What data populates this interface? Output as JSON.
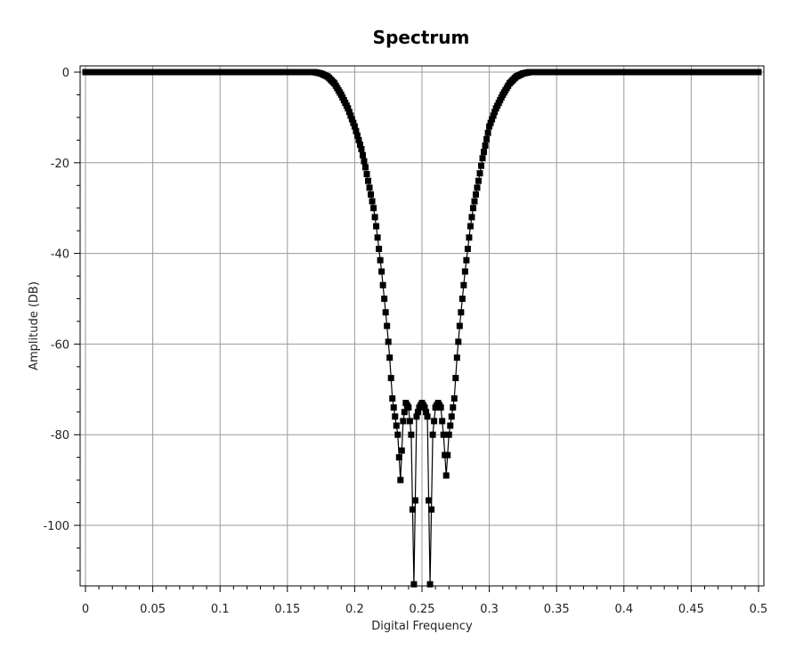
{
  "chart_data": {
    "type": "line",
    "title": "Spectrum",
    "xlabel": "Digital Frequency",
    "ylabel": "Amplitude (DB)",
    "xlim": [
      0,
      0.5
    ],
    "ylim": [
      -113,
      1
    ],
    "grid": true,
    "x_ticks": [
      "0",
      "0.05",
      "0.1",
      "0.15",
      "0.2",
      "0.25",
      "0.3",
      "0.35",
      "0.4",
      "0.45",
      "0.5"
    ],
    "y_ticks": [
      "0",
      "-20",
      "-40",
      "-60",
      "-80",
      "-100"
    ],
    "series": [
      {
        "marker": "square",
        "color": "#000000",
        "x": [
          0.0,
          0.05,
          0.1,
          0.15,
          0.17,
          0.175,
          0.18,
          0.185,
          0.19,
          0.195,
          0.2,
          0.205,
          0.208,
          0.21,
          0.212,
          0.214,
          0.216,
          0.218,
          0.22,
          0.222,
          0.224,
          0.226,
          0.228,
          0.23,
          0.232,
          0.234,
          0.236,
          0.238,
          0.24,
          0.242,
          0.244,
          0.246,
          0.248,
          0.25,
          0.252,
          0.254,
          0.256,
          0.258,
          0.26,
          0.262,
          0.264,
          0.266,
          0.268,
          0.27,
          0.272,
          0.274,
          0.276,
          0.278,
          0.28,
          0.282,
          0.284,
          0.286,
          0.288,
          0.29,
          0.292,
          0.295,
          0.3,
          0.305,
          0.31,
          0.315,
          0.32,
          0.325,
          0.33,
          0.35,
          0.4,
          0.45,
          0.5
        ],
        "y": [
          0,
          0,
          0,
          0,
          0,
          -0.3,
          -1,
          -2.5,
          -5,
          -8,
          -12,
          -17,
          -21,
          -24,
          -27,
          -30,
          -34,
          -39,
          -44,
          -50,
          -56,
          -63,
          -72,
          -76,
          -80,
          -90,
          -77,
          -73,
          -74,
          -80,
          -113,
          -76,
          -74,
          -73,
          -74,
          -76,
          -113,
          -80,
          -74,
          -73,
          -74,
          -80,
          -89,
          -80,
          -76,
          -72,
          -63,
          -56,
          -50,
          -44,
          -39,
          -34,
          -30,
          -27,
          -24,
          -19,
          -12,
          -8,
          -5,
          -2.5,
          -1,
          -0.3,
          0,
          0,
          0,
          0,
          0
        ]
      }
    ]
  }
}
